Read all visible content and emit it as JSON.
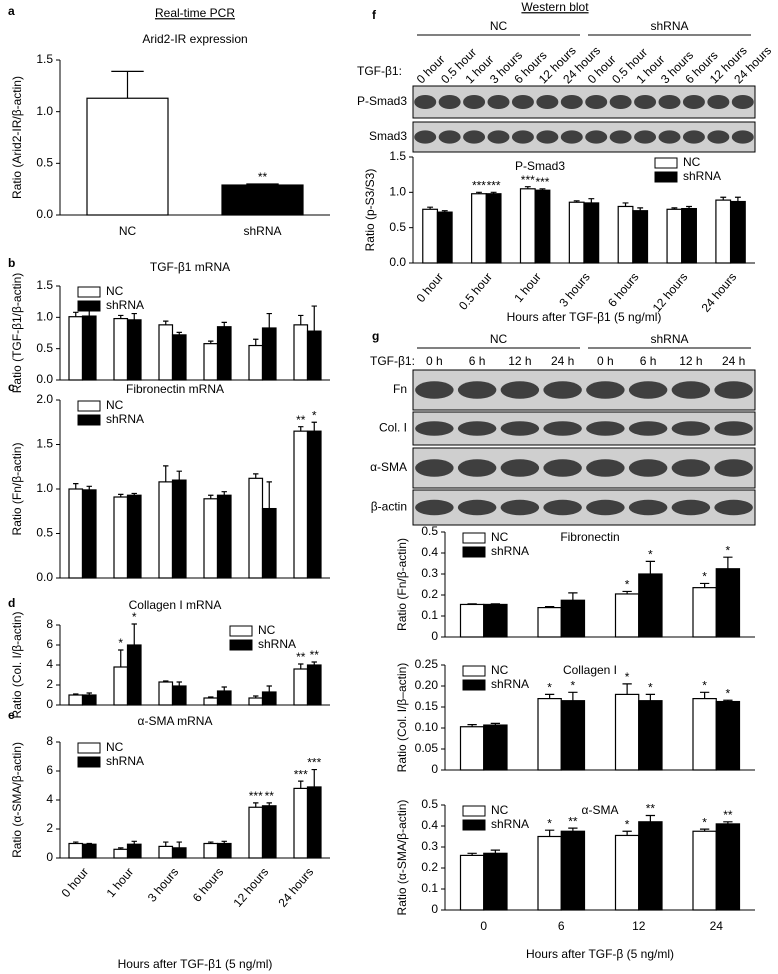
{
  "chart_data": [
    {
      "panel": "a",
      "header": "Real-time PCR",
      "type": "bar",
      "title": "Arid2-IR expression",
      "y_label": "Ratio (Arid2-IR/β-actin)",
      "categories": [
        "NC",
        "shRNA"
      ],
      "values": [
        1.13,
        0.29
      ],
      "errors": [
        0.26,
        0.01
      ],
      "colors": [
        "#ffffff",
        "#000000"
      ],
      "annotations": [
        null,
        "**"
      ],
      "ylim": [
        0,
        1.5
      ],
      "yticks": [
        {
          "value": 0,
          "label": "0.0"
        },
        0.5,
        {
          "value": 1,
          "label": "1.0"
        },
        1.5
      ]
    },
    {
      "panel": "b",
      "type": "bar",
      "title": "TGF-β1 mRNA",
      "y_label": "Ratio (TGF-β1/β-actin)",
      "legend": "upper left",
      "categories": [
        null,
        null,
        null,
        null,
        null,
        null
      ],
      "series": [
        {
          "name": "NC",
          "color": "#ffffff",
          "values": [
            1.01,
            0.98,
            0.88,
            0.58,
            0.55,
            0.88
          ],
          "errors": [
            0.07,
            0.05,
            0.06,
            0.04,
            0.1,
            0.15
          ]
        },
        {
          "name": "shRNA",
          "color": "#000000",
          "values": [
            1.02,
            0.96,
            0.72,
            0.85,
            0.83,
            0.78
          ],
          "errors": [
            0.17,
            0.1,
            0.04,
            0.07,
            0.23,
            0.4
          ]
        }
      ],
      "ylim": [
        0,
        1.5
      ],
      "yticks": [
        {
          "value": 0,
          "label": "0.0"
        },
        0.5,
        {
          "value": 1,
          "label": "1.0"
        },
        1.5
      ]
    },
    {
      "panel": "c",
      "type": "bar",
      "title": "Fibronectin mRNA",
      "y_label": "Ratio (Fn/β-actin)",
      "legend": "upper left",
      "categories": [
        null,
        null,
        null,
        null,
        null,
        null
      ],
      "series": [
        {
          "name": "NC",
          "color": "#ffffff",
          "values": [
            1.0,
            0.91,
            1.08,
            0.89,
            1.12,
            1.65
          ],
          "errors": [
            0.06,
            0.03,
            0.18,
            0.04,
            0.05,
            0.05
          ],
          "annotations": [
            null,
            null,
            null,
            null,
            null,
            "**"
          ]
        },
        {
          "name": "shRNA",
          "color": "#000000",
          "values": [
            0.99,
            0.93,
            1.1,
            0.93,
            0.78,
            1.65
          ],
          "errors": [
            0.04,
            0.02,
            0.1,
            0.04,
            0.3,
            0.1
          ],
          "annotations": [
            null,
            null,
            null,
            null,
            null,
            "*"
          ]
        }
      ],
      "ylim": [
        0,
        2
      ],
      "yticks": [
        {
          "value": 0,
          "label": "0.0"
        },
        0.5,
        {
          "value": 1,
          "label": "1.0"
        },
        1.5,
        {
          "value": 2,
          "label": "2.0"
        }
      ]
    },
    {
      "panel": "d",
      "type": "bar",
      "title": "Collagen I mRNA",
      "y_label": "Ratio (Col. I/β-actin)",
      "legend": "upper right",
      "categories": [
        null,
        null,
        null,
        null,
        null,
        null
      ],
      "series": [
        {
          "name": "NC",
          "color": "#ffffff",
          "values": [
            1.0,
            3.8,
            2.3,
            0.7,
            0.7,
            3.6
          ],
          "errors": [
            0.1,
            1.7,
            0.1,
            0.1,
            0.2,
            0.5
          ],
          "annotations": [
            null,
            "*",
            null,
            null,
            null,
            "**"
          ]
        },
        {
          "name": "shRNA",
          "color": "#000000",
          "values": [
            1.0,
            6.0,
            1.9,
            1.4,
            1.3,
            4.0
          ],
          "errors": [
            0.2,
            2.1,
            0.4,
            0.4,
            0.6,
            0.3
          ],
          "annotations": [
            null,
            "*",
            null,
            null,
            null,
            "**"
          ]
        }
      ],
      "ylim": [
        0,
        8
      ],
      "yticks": [
        0,
        2,
        4,
        6,
        8
      ]
    },
    {
      "panel": "e",
      "type": "bar",
      "title": "α-SMA mRNA",
      "y_label": "Ratio (α-SMA/β-actin)",
      "x_label": "Hours after TGF-β1 (5 ng/ml)",
      "legend": "upper left",
      "categories": [
        "0 hour",
        "1 hour",
        "3 hours",
        "6 hours",
        "12 hours",
        "24 hours"
      ],
      "series": [
        {
          "name": "NC",
          "color": "#ffffff",
          "values": [
            1.0,
            0.6,
            0.8,
            1.0,
            3.5,
            4.8
          ],
          "errors": [
            0.1,
            0.1,
            0.3,
            0.1,
            0.3,
            0.5
          ],
          "annotations": [
            null,
            null,
            null,
            null,
            "***",
            "***"
          ]
        },
        {
          "name": "shRNA",
          "color": "#000000",
          "values": [
            0.95,
            0.95,
            0.7,
            1.0,
            3.6,
            4.9
          ],
          "errors": [
            0.05,
            0.2,
            0.4,
            0.15,
            0.2,
            1.2
          ],
          "annotations": [
            null,
            null,
            null,
            null,
            "**",
            "***"
          ]
        }
      ],
      "ylim": [
        0,
        8
      ],
      "yticks": [
        0,
        2,
        4,
        6,
        8
      ]
    },
    {
      "type": "bar",
      "title": "P-Smad3",
      "y_label": "Ratio (p-S3/S3)",
      "x_label": "Hours after TGF-β1 (5 ng/ml)",
      "legend": "upper right",
      "categories": [
        "0 hour",
        "0.5 hour",
        "1 hour",
        "3 hours",
        "6 hours",
        "12 hours",
        "24 hours"
      ],
      "series": [
        {
          "name": "NC",
          "color": "#ffffff",
          "values": [
            0.76,
            0.98,
            1.05,
            0.86,
            0.8,
            0.76,
            0.89
          ],
          "errors": [
            0.03,
            0.02,
            0.03,
            0.02,
            0.05,
            0.02,
            0.04
          ],
          "annotations": [
            null,
            "***",
            "***",
            null,
            null,
            null,
            null
          ]
        },
        {
          "name": "shRNA",
          "color": "#000000",
          "values": [
            0.72,
            0.98,
            1.03,
            0.85,
            0.74,
            0.77,
            0.87
          ],
          "errors": [
            0.02,
            0.02,
            0.02,
            0.06,
            0.04,
            0.03,
            0.06
          ],
          "annotations": [
            null,
            "***",
            "***",
            null,
            null,
            null,
            null
          ]
        }
      ],
      "ylim": [
        0,
        1.5
      ],
      "yticks": [
        {
          "value": 0,
          "label": "0.0"
        },
        0.5,
        {
          "value": 1,
          "label": "1.0"
        },
        1.5
      ]
    },
    {
      "type": "bar",
      "title": "Fibronectin",
      "y_label": "Ratio (Fn/β-actin)",
      "legend": "upper left",
      "categories": [
        null,
        null,
        null,
        null
      ],
      "series": [
        {
          "name": "NC",
          "color": "#ffffff",
          "values": [
            0.155,
            0.14,
            0.205,
            0.235
          ],
          "errors": [
            0.003,
            0.005,
            0.012,
            0.02
          ],
          "annotations": [
            null,
            null,
            "*",
            "*"
          ]
        },
        {
          "name": "shRNA",
          "color": "#000000",
          "values": [
            0.155,
            0.175,
            0.3,
            0.325
          ],
          "errors": [
            0.003,
            0.035,
            0.06,
            0.055
          ],
          "annotations": [
            null,
            null,
            "*",
            "*"
          ]
        }
      ],
      "ylim": [
        0,
        0.5
      ],
      "yticks": [
        0,
        0.1,
        0.2,
        0.3,
        0.4,
        0.5
      ]
    },
    {
      "type": "bar",
      "title": "Collagen I",
      "y_label": "Ratio (Col. I/β–actin)",
      "legend": "upper left",
      "categories": [
        null,
        null,
        null,
        null
      ],
      "series": [
        {
          "name": "NC",
          "color": "#ffffff",
          "values": [
            0.103,
            0.17,
            0.18,
            0.17
          ],
          "errors": [
            0.005,
            0.01,
            0.025,
            0.015
          ],
          "annotations": [
            null,
            "*",
            "*",
            "*"
          ]
        },
        {
          "name": "shRNA",
          "color": "#000000",
          "values": [
            0.107,
            0.165,
            0.165,
            0.163
          ],
          "errors": [
            0.004,
            0.02,
            0.015,
            0.003
          ],
          "annotations": [
            null,
            "*",
            "*",
            "*"
          ]
        }
      ],
      "ylim": [
        0,
        0.25
      ],
      "yticks": [
        0,
        0.05,
        {
          "value": 0.1,
          "label": "0.10"
        },
        0.15,
        {
          "value": 0.2,
          "label": "0.20"
        },
        0.25
      ]
    },
    {
      "type": "bar",
      "title": "α-SMA",
      "y_label": "Ratio (α-SMA/β-actin)",
      "x_label": "Hours after TGF-β (5 ng/ml)",
      "legend": "upper left",
      "categories": [
        "0",
        "6",
        "12",
        "24"
      ],
      "series": [
        {
          "name": "NC",
          "color": "#ffffff",
          "values": [
            0.26,
            0.35,
            0.355,
            0.375
          ],
          "errors": [
            0.01,
            0.03,
            0.02,
            0.01
          ],
          "annotations": [
            null,
            "*",
            "*",
            "*"
          ]
        },
        {
          "name": "shRNA",
          "color": "#000000",
          "values": [
            0.27,
            0.375,
            0.42,
            0.41
          ],
          "errors": [
            0.015,
            0.015,
            0.03,
            0.01
          ],
          "annotations": [
            null,
            "**",
            "**",
            "**"
          ]
        }
      ],
      "ylim": [
        0,
        0.5
      ],
      "yticks": [
        0,
        0.1,
        0.2,
        0.3,
        0.4,
        0.5
      ]
    }
  ],
  "blots": [
    {
      "panel": "f",
      "header": "Western blot",
      "groups": [
        "NC",
        "shRNA"
      ],
      "treatment_label": "TGF-β1:",
      "lanes": [
        "0 hour",
        "0.5 hour",
        "1 hour",
        "3 hours",
        "6 hours",
        "12 hours",
        "24 hours",
        "0 hour",
        "0.5 hour",
        "1 hour",
        "3 hours",
        "6 hours",
        "12 hours",
        "24 hours"
      ],
      "rows": [
        "P-Smad3",
        "Smad3"
      ]
    },
    {
      "panel": "g",
      "groups": [
        "NC",
        "shRNA"
      ],
      "treatment_label": "TGF-β1:",
      "lanes": [
        "0 h",
        "6 h",
        "12 h",
        "24 h",
        "0 h",
        "6 h",
        "12 h",
        "24 h"
      ],
      "rows": [
        "Fn",
        "Col. I",
        "α-SMA",
        "β-actin"
      ]
    }
  ]
}
